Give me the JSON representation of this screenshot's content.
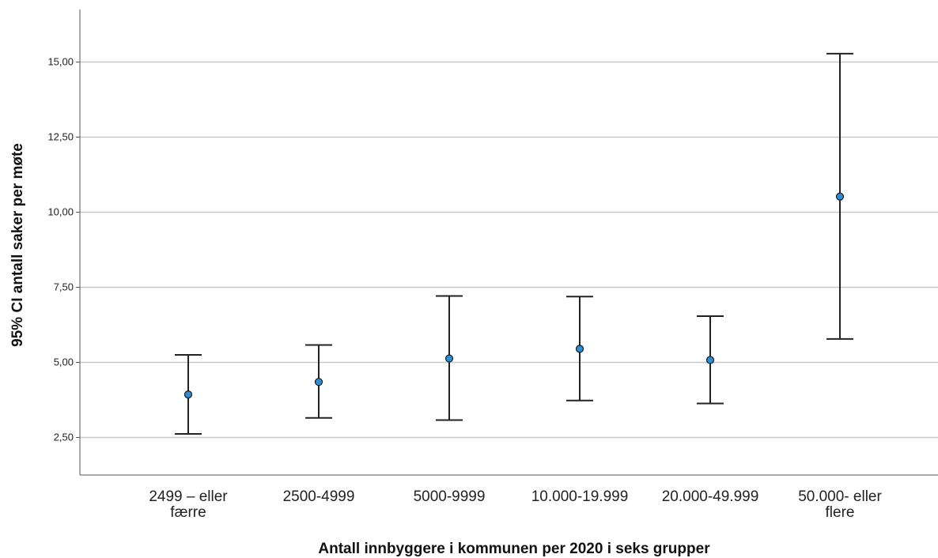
{
  "chart_data": {
    "type": "errorbar",
    "xlabel": "Antall innbyggere i kommunen per 2020 i seks grupper",
    "ylabel": "95% CI antall saker per møte",
    "ylim": [
      1.25,
      16.75
    ],
    "yticks": [
      2.5,
      5.0,
      7.5,
      10.0,
      12.5,
      15.0
    ],
    "ytick_labels": [
      "2,50",
      "5,00",
      "7,50",
      "10,00",
      "12,50",
      "15,00"
    ],
    "grid": "horizontal",
    "categories": [
      [
        "2499 – eller",
        "færre"
      ],
      [
        "2500-4999"
      ],
      [
        "5000-9999"
      ],
      [
        "10.000-19.999"
      ],
      [
        "20.000-49.999"
      ],
      [
        "50.000- eller",
        "flere"
      ]
    ],
    "mean": [
      3.93,
      4.35,
      5.13,
      5.45,
      5.08,
      10.52
    ],
    "lower": [
      2.62,
      3.15,
      3.08,
      3.73,
      3.63,
      5.78
    ],
    "upper": [
      5.25,
      5.58,
      7.21,
      7.19,
      6.54,
      15.28
    ],
    "colors": {
      "marker": "#2b8fd6",
      "marker_edge": "#1a1a1a",
      "bar": "#222222",
      "grid": "#c8c8c8",
      "axis": "#555555"
    }
  }
}
